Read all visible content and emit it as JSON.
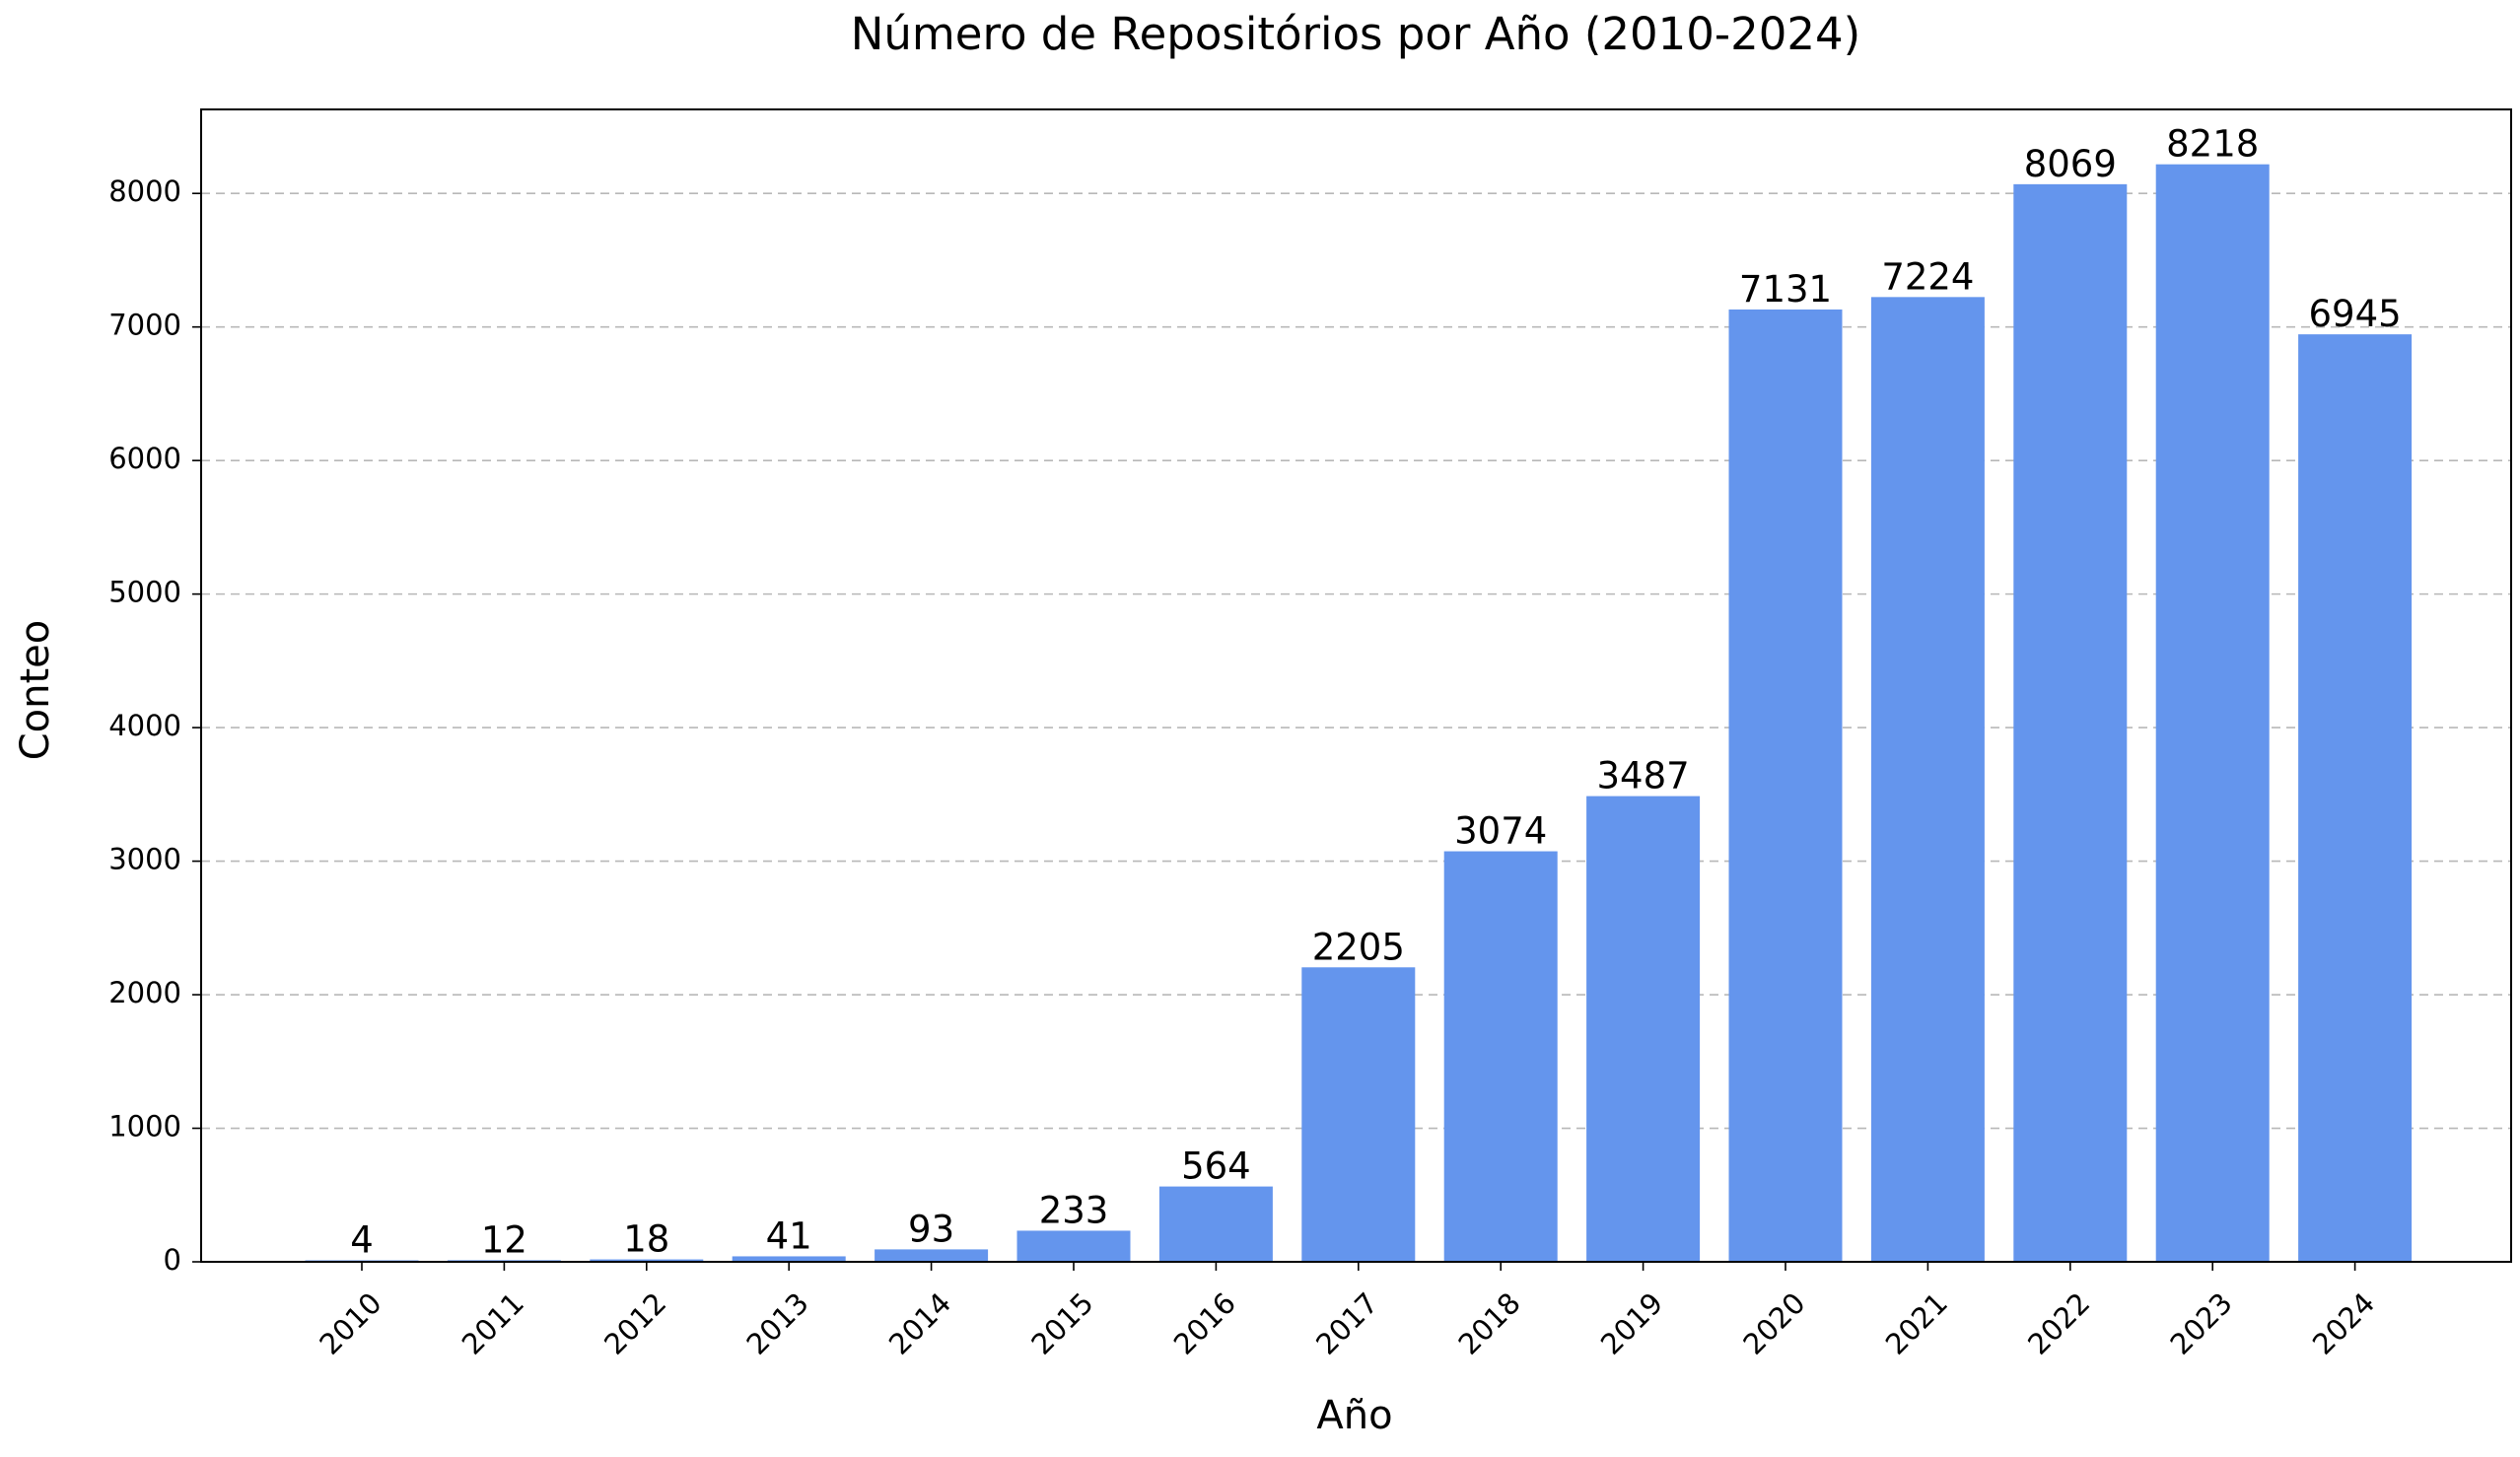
{
  "chart_data": {
    "type": "bar",
    "title": "Número de Repositórios por Año (2010-2024)",
    "xlabel": "Año",
    "ylabel": "Conteo",
    "categories": [
      "2010",
      "2011",
      "2012",
      "2013",
      "2014",
      "2015",
      "2016",
      "2017",
      "2018",
      "2019",
      "2020",
      "2021",
      "2022",
      "2023",
      "2024"
    ],
    "values": [
      4,
      12,
      18,
      41,
      93,
      233,
      564,
      2205,
      3074,
      3487,
      7131,
      7224,
      8069,
      8218,
      6945
    ],
    "data_labels": [
      "4",
      "12",
      "18",
      "41",
      "93",
      "233",
      "564",
      "2205",
      "3074",
      "3487",
      "7131",
      "7224",
      "8069",
      "8218",
      "6945"
    ],
    "ylim": [
      0,
      8629
    ],
    "yticks": [
      0,
      1000,
      2000,
      3000,
      4000,
      5000,
      6000,
      7000,
      8000
    ],
    "ytick_labels": [
      "0",
      "1000",
      "2000",
      "3000",
      "4000",
      "5000",
      "6000",
      "7000",
      "8000"
    ],
    "xtick_rotation": "45 degrees",
    "grid": "y-axis, dashed",
    "legend": "none",
    "bar_color": "#6495ED"
  }
}
